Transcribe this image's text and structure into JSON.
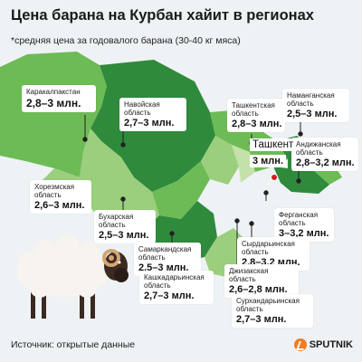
{
  "title": "Цена барана на Курбан хайит в регионах",
  "subtitle": "*средняя цена за годовалого барана (30-40 кг мяса)",
  "source": "Источник: открытые данные",
  "brand": "SPUTNIK",
  "colors": {
    "background": "#eef2f5",
    "region_dark": "#2f8a3c",
    "region_mid": "#6dbb55",
    "region_light": "#9bcf7d",
    "region_pale": "#c3e1a8",
    "capital_marker": "#d11c1c",
    "brand_accent": "#f27c22"
  },
  "capital": {
    "name": "Ташкент",
    "price": "3 млн."
  },
  "regions": [
    {
      "name": "Каракалпакстан",
      "price": "2,8–3 млн."
    },
    {
      "name": "Навойская\nобласть",
      "price": "2,7–3 млн."
    },
    {
      "name": "Ташкентская\nобласть",
      "price": "2,8–3 млн."
    },
    {
      "name": "Наманганская\nобласть",
      "price": "2,5–3 млн."
    },
    {
      "name": "Андижанская\nобласть",
      "price": "2,8–3,2 млн."
    },
    {
      "name": "Хорезмская\nобласть",
      "price": "2,6–3 млн."
    },
    {
      "name": "Бухарская\nобласть",
      "price": "2,5–3 млн."
    },
    {
      "name": "Ферганская\nобласть",
      "price": "3–3,2 млн."
    },
    {
      "name": "Самаркандская\nобласть",
      "price": "2,5–3 млн."
    },
    {
      "name": "Сырдарьинская\nобласть",
      "price": "2,8–3,2 млн."
    },
    {
      "name": "Кашкадарьинская\nобласть",
      "price": "2,7–3 млн."
    },
    {
      "name": "Джизакская\nобласть",
      "price": "2,6–2,8 млн."
    },
    {
      "name": "Сурхандарьинская\nобласть",
      "price": "2,7–3 млн."
    }
  ]
}
